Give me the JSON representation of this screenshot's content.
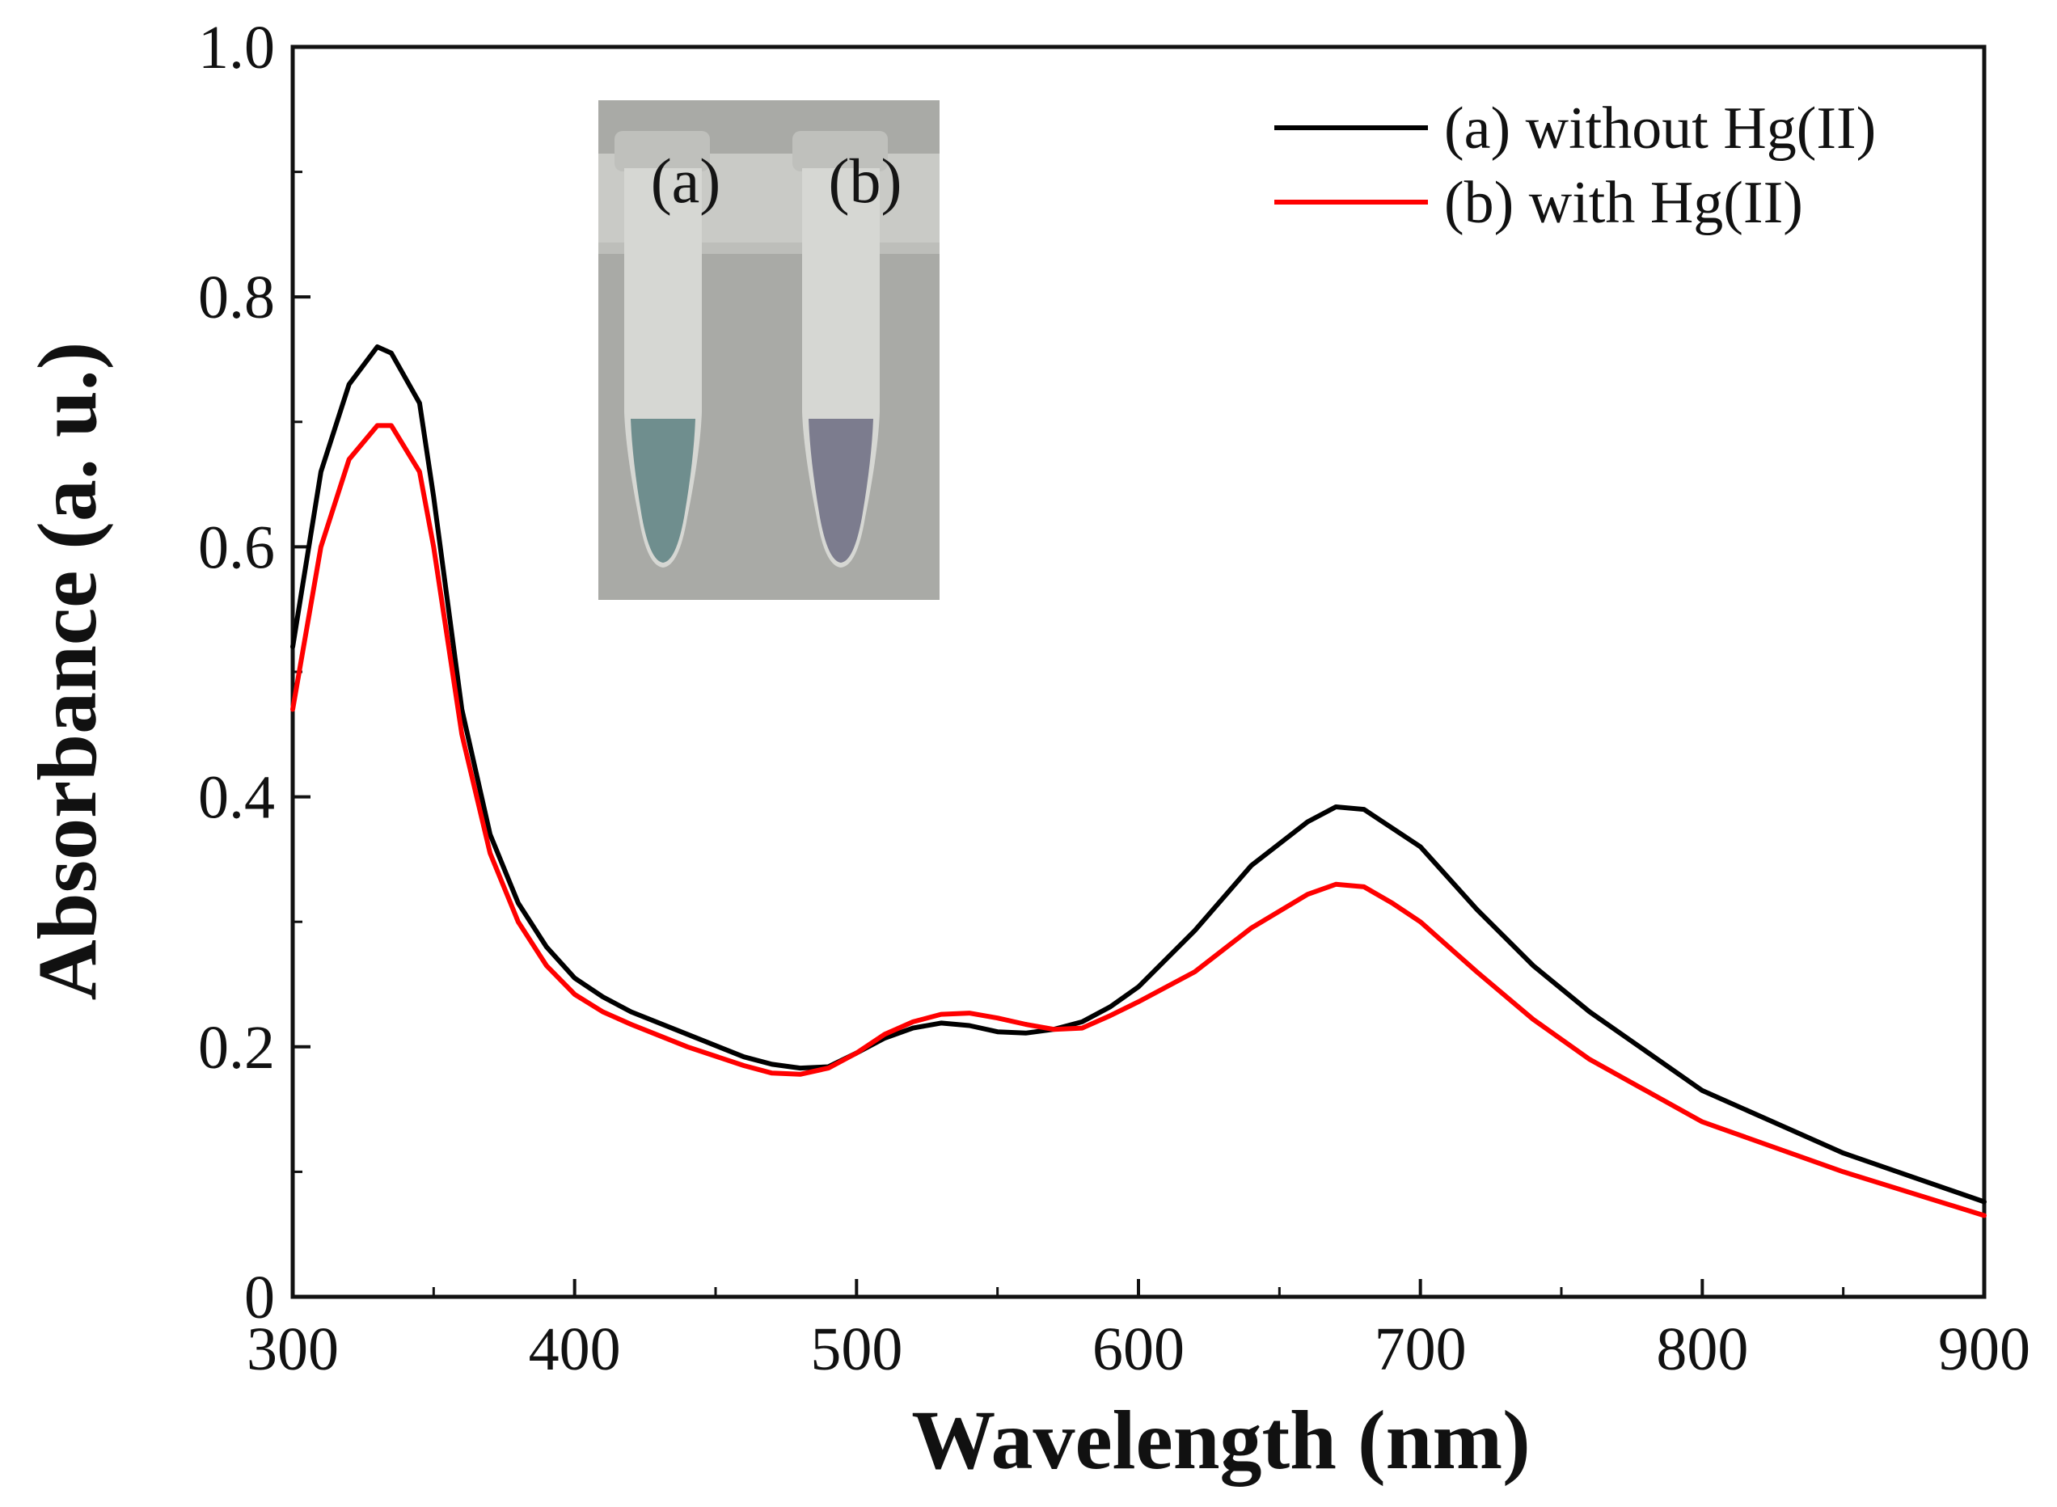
{
  "chart_data": {
    "type": "line",
    "title": "",
    "xlabel": "Wavelength (nm)",
    "ylabel": "Absorbance (a. u.)",
    "xlim": [
      300,
      900
    ],
    "ylim": [
      0,
      1.0
    ],
    "x_ticks": [
      "300",
      "400",
      "500",
      "600",
      "700",
      "800",
      "900"
    ],
    "y_ticks": [
      "0",
      "0.2",
      "0.4",
      "0.6",
      "0.8",
      "1.0"
    ],
    "x_tick_values": [
      300,
      400,
      500,
      600,
      700,
      800,
      900
    ],
    "y_tick_values": [
      0,
      0.2,
      0.4,
      0.6,
      0.8,
      1.0
    ],
    "legend_position": "top-right",
    "series": [
      {
        "name": "(a) without Hg(II)",
        "color": "#000000",
        "x": [
          300,
          310,
          320,
          330,
          335,
          345,
          350,
          360,
          370,
          380,
          390,
          400,
          410,
          420,
          440,
          460,
          470,
          480,
          490,
          500,
          510,
          520,
          530,
          540,
          550,
          560,
          570,
          580,
          590,
          600,
          620,
          640,
          660,
          670,
          680,
          690,
          700,
          720,
          740,
          760,
          800,
          850,
          900
        ],
        "values": [
          0.52,
          0.66,
          0.73,
          0.76,
          0.755,
          0.715,
          0.64,
          0.47,
          0.37,
          0.315,
          0.28,
          0.255,
          0.24,
          0.228,
          0.21,
          0.192,
          0.186,
          0.183,
          0.184,
          0.195,
          0.207,
          0.215,
          0.219,
          0.217,
          0.212,
          0.211,
          0.214,
          0.22,
          0.232,
          0.248,
          0.293,
          0.345,
          0.38,
          0.392,
          0.39,
          0.375,
          0.36,
          0.31,
          0.265,
          0.228,
          0.165,
          0.115,
          0.076
        ]
      },
      {
        "name": "(b) with Hg(II)",
        "color": "#ff0000",
        "x": [
          300,
          310,
          320,
          330,
          335,
          345,
          350,
          360,
          370,
          380,
          390,
          400,
          410,
          420,
          440,
          460,
          470,
          480,
          490,
          500,
          510,
          520,
          530,
          540,
          550,
          560,
          570,
          580,
          590,
          600,
          620,
          640,
          660,
          670,
          680,
          690,
          700,
          720,
          740,
          760,
          800,
          850,
          900
        ],
        "values": [
          0.47,
          0.6,
          0.67,
          0.697,
          0.697,
          0.66,
          0.6,
          0.45,
          0.355,
          0.3,
          0.265,
          0.242,
          0.228,
          0.218,
          0.2,
          0.185,
          0.179,
          0.178,
          0.183,
          0.195,
          0.21,
          0.22,
          0.226,
          0.227,
          0.223,
          0.218,
          0.214,
          0.215,
          0.225,
          0.236,
          0.26,
          0.295,
          0.322,
          0.33,
          0.328,
          0.315,
          0.3,
          0.26,
          0.222,
          0.19,
          0.14,
          0.1,
          0.065
        ]
      }
    ]
  },
  "inset": {
    "tube_a_label": "(a)",
    "tube_b_label": "(b)",
    "tube_a_liquid_color": "#6f8e8e",
    "tube_b_liquid_color": "#7c7c8e"
  }
}
